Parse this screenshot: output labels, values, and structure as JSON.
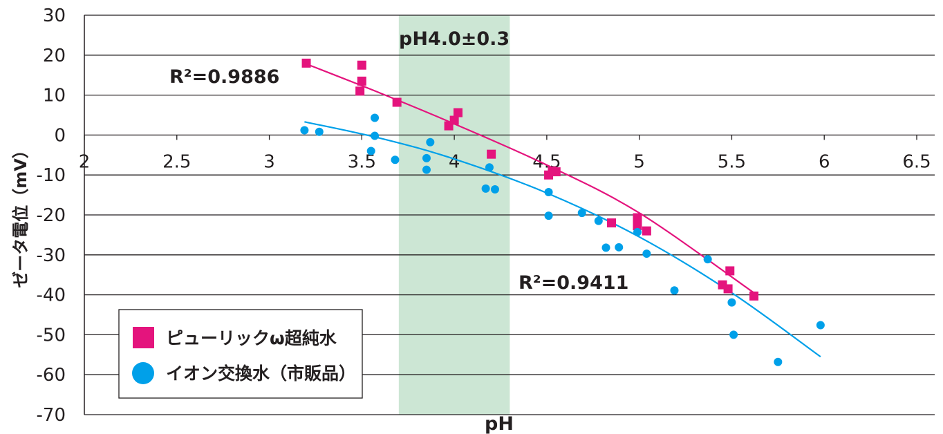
{
  "chart_data": {
    "type": "scatter",
    "xlabel": "pH",
    "ylabel": "ゼータ電位（mV）",
    "xlim": [
      2,
      6.5
    ],
    "ylim": [
      -70,
      30
    ],
    "x_ticks": [
      "2",
      "2.5",
      "3",
      "3.5",
      "4",
      "4.5",
      "5",
      "5.5",
      "6",
      "6.5"
    ],
    "y_ticks": [
      "30",
      "20",
      "10",
      "0",
      "-10",
      "-20",
      "-30",
      "-40",
      "-50",
      "-60",
      "-70"
    ],
    "grid": "horizontal",
    "legend_position": "bottom-left",
    "highlight_band": {
      "label": "pH4.0±0.3",
      "range": [
        3.7,
        4.3
      ],
      "color": "#cce6d4"
    },
    "series": [
      {
        "name": "ピューリックω超純水",
        "marker": "square",
        "color": "#e4147d",
        "r2_label": "R²=0.9886",
        "points": [
          [
            3.2,
            18
          ],
          [
            3.5,
            17.5
          ],
          [
            3.5,
            13.5
          ],
          [
            3.49,
            11
          ],
          [
            3.69,
            8.2
          ],
          [
            3.97,
            2.3
          ],
          [
            4.0,
            3.7
          ],
          [
            4.02,
            5.6
          ],
          [
            4.2,
            -4.8
          ],
          [
            4.51,
            -10
          ],
          [
            4.53,
            -9
          ],
          [
            4.55,
            -9.2
          ],
          [
            4.85,
            -22
          ],
          [
            4.99,
            -20.7
          ],
          [
            4.99,
            -22.7
          ],
          [
            5.04,
            -24
          ],
          [
            5.45,
            -37.5
          ],
          [
            5.48,
            -38.5
          ],
          [
            5.49,
            -34
          ],
          [
            5.62,
            -40.3
          ]
        ],
        "fit": [
          [
            3.2,
            17.8
          ],
          [
            3.6,
            10.5
          ],
          [
            4.0,
            2.8
          ],
          [
            4.5,
            -7.5
          ],
          [
            5.0,
            -19.5
          ],
          [
            5.62,
            -39.5
          ]
        ]
      },
      {
        "name": "イオン交換水（市販品）",
        "marker": "circle",
        "color": "#00a0e9",
        "r2_label": "R²=0.9411",
        "points": [
          [
            3.19,
            1.2
          ],
          [
            3.27,
            0.8
          ],
          [
            3.55,
            -4
          ],
          [
            3.57,
            4.3
          ],
          [
            3.57,
            -0.2
          ],
          [
            3.68,
            -6.2
          ],
          [
            3.85,
            -5.8
          ],
          [
            3.85,
            -8.7
          ],
          [
            3.87,
            -1.8
          ],
          [
            4.19,
            -8.1
          ],
          [
            4.17,
            -13.4
          ],
          [
            4.22,
            -13.6
          ],
          [
            4.51,
            -14.3
          ],
          [
            4.51,
            -20.2
          ],
          [
            4.69,
            -19.5
          ],
          [
            4.78,
            -21.5
          ],
          [
            4.82,
            -28.2
          ],
          [
            4.89,
            -28.1
          ],
          [
            4.99,
            -24.3
          ],
          [
            5.04,
            -29.7
          ],
          [
            5.19,
            -38.9
          ],
          [
            5.37,
            -31.1
          ],
          [
            5.5,
            -41.9
          ],
          [
            5.51,
            -50
          ],
          [
            5.75,
            -56.8
          ],
          [
            5.98,
            -47.6
          ]
        ],
        "fit": [
          [
            3.19,
            3.3
          ],
          [
            3.6,
            -0.8
          ],
          [
            4.0,
            -6
          ],
          [
            4.5,
            -14.5
          ],
          [
            5.0,
            -25.5
          ],
          [
            5.5,
            -39.5
          ],
          [
            5.98,
            -55.5
          ]
        ]
      }
    ]
  }
}
